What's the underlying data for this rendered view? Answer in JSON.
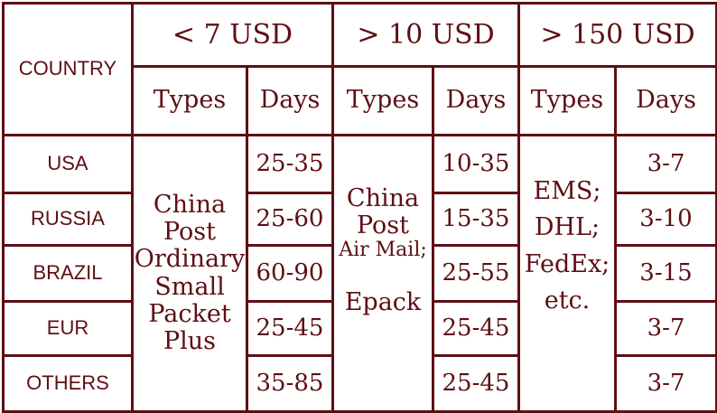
{
  "header": {
    "country": "COUNTRY",
    "tiers": [
      "< 7 USD",
      "> 10 USD",
      "> 150 USD"
    ],
    "types_label": "Types",
    "days_label": "Days"
  },
  "tier1": {
    "types": [
      "China",
      "Post",
      "Ordinary",
      "Small",
      "Packet",
      "Plus"
    ]
  },
  "tier2": {
    "types": [
      "China",
      "Post",
      "Air Mail;",
      "Epack"
    ]
  },
  "tier3": {
    "types": [
      "EMS;",
      "DHL;",
      "FedEx;",
      "etc."
    ]
  },
  "rows": [
    {
      "country": "USA",
      "d1": "25-35",
      "d2": "10-35",
      "d3": "3-7"
    },
    {
      "country": "RUSSIA",
      "d1": "25-60",
      "d2": "15-35",
      "d3": "3-10"
    },
    {
      "country": "BRAZIL",
      "d1": "60-90",
      "d2": "25-55",
      "d3": "3-15"
    },
    {
      "country": "EUR",
      "d1": "25-45",
      "d2": "25-45",
      "d3": "3-7"
    },
    {
      "country": "OTHERS",
      "d1": "35-85",
      "d2": "25-45",
      "d3": "3-7"
    }
  ]
}
